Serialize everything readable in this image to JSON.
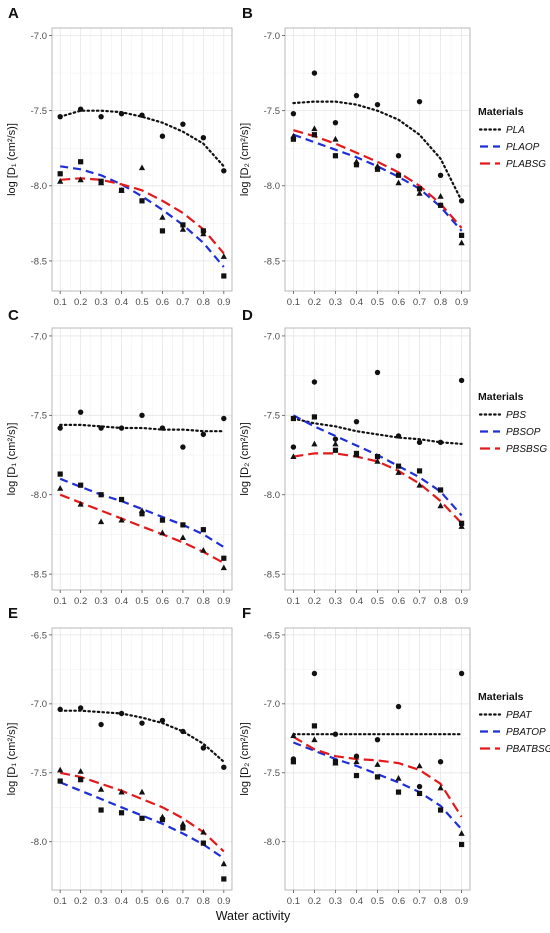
{
  "figure": {
    "xlabel": "Water activity",
    "x_ticks": [
      "0.1",
      "0.2",
      "0.3",
      "0.4",
      "0.5",
      "0.6",
      "0.7",
      "0.8",
      "0.9"
    ],
    "legend_title": "Materials",
    "colors": {
      "neat": "#111111",
      "op": "#1f2fd6",
      "bsg": "#e31a1c",
      "grid": "#e6e6e6",
      "panel_border": "#b3b3b3"
    }
  },
  "chart_data": [
    {
      "panel": "A",
      "type": "scatter",
      "ylabel": "log [D₁ (cm²/s)]",
      "ylim": [
        -8.7,
        -6.95
      ],
      "yticks": [
        -7.0,
        -7.5,
        -8.0,
        -8.5
      ],
      "ytick_labels": [
        "-7.0",
        "-7.5",
        "-8.0",
        "-8.5"
      ],
      "x": [
        0.1,
        0.2,
        0.3,
        0.4,
        0.5,
        0.6,
        0.7,
        0.8,
        0.9
      ],
      "series": [
        {
          "name": "PLA",
          "style": "dotted",
          "marker": "circle",
          "values": [
            -7.54,
            -7.49,
            -7.54,
            -7.52,
            -7.53,
            -7.67,
            -7.59,
            -7.68,
            -7.9
          ],
          "fit": [
            -7.54,
            -7.5,
            -7.5,
            -7.51,
            -7.54,
            -7.58,
            -7.64,
            -7.72,
            -7.87
          ]
        },
        {
          "name": "PLAOP",
          "style": "dashed",
          "marker": "square",
          "values": [
            -7.92,
            -7.84,
            -7.97,
            -8.03,
            -8.1,
            -8.3,
            -8.26,
            -8.3,
            -8.6
          ],
          "fit": [
            -7.87,
            -7.89,
            -7.93,
            -7.99,
            -8.07,
            -8.16,
            -8.26,
            -8.38,
            -8.54
          ]
        },
        {
          "name": "PLABSG",
          "style": "dashed",
          "marker": "triangle",
          "values": [
            -7.97,
            -7.96,
            -7.98,
            -8.03,
            -7.88,
            -8.21,
            -8.29,
            -8.32,
            -8.47
          ],
          "fit": [
            -7.96,
            -7.95,
            -7.96,
            -7.99,
            -8.03,
            -8.1,
            -8.18,
            -8.29,
            -8.45
          ]
        }
      ]
    },
    {
      "panel": "B",
      "type": "scatter",
      "ylabel": "log [D₂ (cm²/s)]",
      "ylim": [
        -8.7,
        -6.95
      ],
      "yticks": [
        -7.0,
        -7.5,
        -8.0,
        -8.5
      ],
      "ytick_labels": [
        "-7.0",
        "-7.5",
        "-8.0",
        "-8.5"
      ],
      "x": [
        0.1,
        0.2,
        0.3,
        0.4,
        0.5,
        0.6,
        0.7,
        0.8,
        0.9
      ],
      "series": [
        {
          "name": "PLA",
          "style": "dotted",
          "marker": "circle",
          "values": [
            -7.52,
            -7.25,
            -7.58,
            -7.4,
            -7.46,
            -7.8,
            -7.44,
            -7.93,
            -8.1
          ],
          "fit": [
            -7.45,
            -7.44,
            -7.44,
            -7.46,
            -7.5,
            -7.56,
            -7.66,
            -7.82,
            -8.1
          ]
        },
        {
          "name": "PLAOP",
          "style": "dashed",
          "marker": "square",
          "values": [
            -7.69,
            -7.66,
            -7.8,
            -7.86,
            -7.89,
            -7.93,
            -8.02,
            -8.13,
            -8.33
          ],
          "fit": [
            -7.66,
            -7.71,
            -7.76,
            -7.81,
            -7.87,
            -7.94,
            -8.02,
            -8.14,
            -8.3
          ]
        },
        {
          "name": "PLABSG",
          "style": "dashed",
          "marker": "triangle",
          "values": [
            -7.67,
            -7.62,
            -7.69,
            -7.84,
            -7.87,
            -7.98,
            -8.05,
            -8.07,
            -8.38
          ],
          "fit": [
            -7.63,
            -7.67,
            -7.72,
            -7.78,
            -7.84,
            -7.91,
            -8.0,
            -8.12,
            -8.28
          ]
        }
      ]
    },
    {
      "panel": "C",
      "type": "scatter",
      "ylabel": "log [D₁ (cm²/s)]",
      "ylim": [
        -8.6,
        -6.95
      ],
      "yticks": [
        -7.0,
        -7.5,
        -8.0,
        -8.5
      ],
      "ytick_labels": [
        "-7.0",
        "-7.5",
        "-8.0",
        "-8.5"
      ],
      "x": [
        0.1,
        0.2,
        0.3,
        0.4,
        0.5,
        0.6,
        0.7,
        0.8,
        0.9
      ],
      "series": [
        {
          "name": "PLA",
          "style": "dotted",
          "marker": "circle",
          "values": [
            -7.58,
            -7.48,
            -7.58,
            -7.58,
            -7.5,
            -7.58,
            -7.7,
            -7.62,
            -7.52
          ],
          "fit": [
            -7.56,
            -7.56,
            -7.57,
            -7.58,
            -7.58,
            -7.59,
            -7.59,
            -7.6,
            -7.6
          ]
        },
        {
          "name": "PLAOP",
          "style": "dashed",
          "marker": "square",
          "values": [
            -7.87,
            -7.94,
            -8.0,
            -8.03,
            -8.12,
            -8.16,
            -8.19,
            -8.22,
            -8.4
          ],
          "fit": [
            -7.9,
            -7.95,
            -8.0,
            -8.04,
            -8.09,
            -8.14,
            -8.19,
            -8.25,
            -8.33
          ]
        },
        {
          "name": "PLABSG",
          "style": "dashed",
          "marker": "triangle",
          "values": [
            -7.96,
            -8.06,
            -8.17,
            -8.16,
            -8.1,
            -8.24,
            -8.27,
            -8.35,
            -8.46
          ],
          "fit": [
            -8.0,
            -8.05,
            -8.1,
            -8.15,
            -8.2,
            -8.25,
            -8.3,
            -8.36,
            -8.43
          ]
        }
      ]
    },
    {
      "panel": "D",
      "type": "scatter",
      "ylabel": "log [D₂ (cm²/s)]",
      "ylim": [
        -8.6,
        -6.95
      ],
      "yticks": [
        -7.0,
        -7.5,
        -8.0,
        -8.5
      ],
      "ytick_labels": [
        "-7.0",
        "-7.5",
        "-8.0",
        "-8.5"
      ],
      "x": [
        0.1,
        0.2,
        0.3,
        0.4,
        0.5,
        0.6,
        0.7,
        0.8,
        0.9
      ],
      "series": [
        {
          "name": "PBS",
          "style": "dotted",
          "marker": "circle",
          "values": [
            -7.7,
            -7.29,
            -7.65,
            -7.54,
            -7.23,
            -7.63,
            -7.67,
            -7.67,
            -7.28
          ],
          "fit": [
            -7.52,
            -7.55,
            -7.57,
            -7.6,
            -7.62,
            -7.64,
            -7.65,
            -7.67,
            -7.68
          ]
        },
        {
          "name": "PBSOP",
          "style": "dashed",
          "marker": "square",
          "values": [
            -7.52,
            -7.51,
            -7.72,
            -7.74,
            -7.76,
            -7.82,
            -7.85,
            -7.97,
            -8.18
          ],
          "fit": [
            -7.5,
            -7.57,
            -7.63,
            -7.69,
            -7.75,
            -7.82,
            -7.89,
            -7.98,
            -8.13
          ]
        },
        {
          "name": "PBSBSG",
          "style": "dashed",
          "marker": "triangle",
          "values": [
            -7.76,
            -7.68,
            -7.68,
            -7.75,
            -7.79,
            -7.86,
            -7.94,
            -8.07,
            -8.2
          ],
          "fit": [
            -7.76,
            -7.74,
            -7.74,
            -7.76,
            -7.79,
            -7.85,
            -7.93,
            -8.04,
            -8.18
          ]
        }
      ]
    },
    {
      "panel": "E",
      "type": "scatter",
      "ylabel": "log [D₁ (cm²/s)]",
      "ylim": [
        -8.35,
        -6.45
      ],
      "yticks": [
        -6.5,
        -7.0,
        -7.5,
        -8.0
      ],
      "ytick_labels": [
        "-6.5",
        "-7.0",
        "-7.5",
        "-8.0"
      ],
      "x": [
        0.1,
        0.2,
        0.3,
        0.4,
        0.5,
        0.6,
        0.7,
        0.8,
        0.9
      ],
      "series": [
        {
          "name": "PBAT",
          "style": "dotted",
          "marker": "circle",
          "values": [
            -7.04,
            -7.03,
            -7.15,
            -7.07,
            -7.14,
            -7.12,
            -7.2,
            -7.32,
            -7.46
          ],
          "fit": [
            -7.05,
            -7.05,
            -7.06,
            -7.07,
            -7.1,
            -7.14,
            -7.2,
            -7.29,
            -7.42
          ]
        },
        {
          "name": "PBATOP",
          "style": "dashed",
          "marker": "square",
          "values": [
            -7.56,
            -7.55,
            -7.77,
            -7.79,
            -7.83,
            -7.84,
            -7.9,
            -8.01,
            -8.27
          ],
          "fit": [
            -7.57,
            -7.63,
            -7.69,
            -7.75,
            -7.81,
            -7.87,
            -7.94,
            -8.02,
            -8.12
          ]
        },
        {
          "name": "PBATBSG",
          "style": "dashed",
          "marker": "triangle",
          "values": [
            -7.48,
            -7.49,
            -7.62,
            -7.64,
            -7.64,
            -7.82,
            -7.87,
            -7.93,
            -8.16
          ],
          "fit": [
            -7.5,
            -7.53,
            -7.58,
            -7.63,
            -7.69,
            -7.75,
            -7.83,
            -7.93,
            -8.07
          ]
        }
      ]
    },
    {
      "panel": "F",
      "type": "scatter",
      "ylabel": "log [D₂ (cm²/s)]",
      "ylim": [
        -8.35,
        -6.45
      ],
      "yticks": [
        -6.5,
        -7.0,
        -7.5,
        -8.0
      ],
      "ytick_labels": [
        "-6.5",
        "-7.0",
        "-7.5",
        "-8.0"
      ],
      "x": [
        0.1,
        0.2,
        0.3,
        0.4,
        0.5,
        0.6,
        0.7,
        0.8,
        0.9
      ],
      "series": [
        {
          "name": "PBAT",
          "style": "dotted",
          "marker": "circle",
          "values": [
            -7.4,
            -6.78,
            -7.22,
            -7.38,
            -7.26,
            -7.02,
            -7.6,
            -7.42,
            -6.78
          ],
          "fit": [
            -7.22,
            -7.22,
            -7.22,
            -7.22,
            -7.22,
            -7.22,
            -7.22,
            -7.22,
            -7.22
          ]
        },
        {
          "name": "PBATOP",
          "style": "dashed",
          "marker": "square",
          "values": [
            -7.42,
            -7.16,
            -7.42,
            -7.52,
            -7.53,
            -7.64,
            -7.65,
            -7.77,
            -8.02
          ],
          "fit": [
            -7.28,
            -7.34,
            -7.4,
            -7.45,
            -7.51,
            -7.57,
            -7.64,
            -7.74,
            -7.91
          ]
        },
        {
          "name": "PBATBSG",
          "style": "dashed",
          "marker": "triangle",
          "values": [
            -7.23,
            -7.26,
            -7.43,
            -7.42,
            -7.44,
            -7.54,
            -7.45,
            -7.61,
            -7.94
          ],
          "fit": [
            -7.24,
            -7.33,
            -7.38,
            -7.4,
            -7.41,
            -7.43,
            -7.48,
            -7.58,
            -7.82
          ]
        }
      ]
    }
  ]
}
